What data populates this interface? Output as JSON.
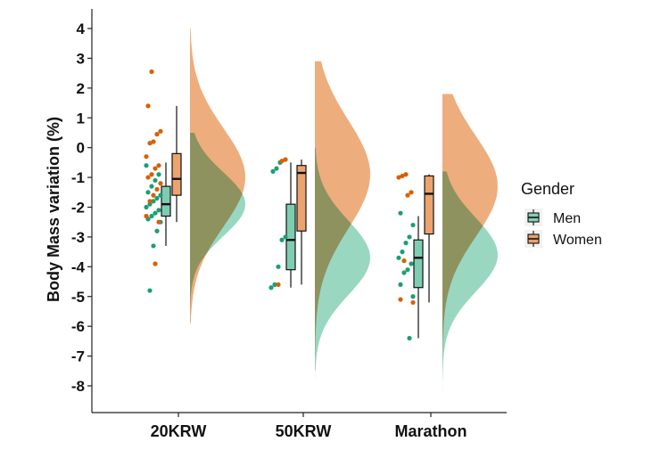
{
  "chart_data": {
    "type": "raincloud",
    "title": "",
    "xlabel": "",
    "ylabel": "Body Mass variation (%)",
    "ylim": [
      -8.9,
      4.4
    ],
    "yticks": [
      4,
      3,
      2,
      1,
      0,
      -1,
      -2,
      -3,
      -4,
      -5,
      -6,
      -7,
      -8
    ],
    "categories": [
      "20KRW",
      "50KRW",
      "Marathon"
    ],
    "legend": {
      "title": "Gender",
      "position": "right",
      "items": [
        {
          "name": "Men",
          "color": "#1b9e77",
          "fill": "#86cfb6"
        },
        {
          "name": "Women",
          "color": "#d95f02",
          "fill": "#e8a26e"
        }
      ]
    },
    "colors": {
      "men_point": "#1b9e77",
      "women_point": "#d95f02",
      "men_fill": "#7fcdb1",
      "women_fill": "#eba46f",
      "overlap_fill": "#a08a55"
    },
    "series": [
      {
        "name": "Men",
        "boxes": [
          {
            "category": "20KRW",
            "min": -3.3,
            "q1": -2.3,
            "median": -1.9,
            "q3": -1.3,
            "max": -0.5
          },
          {
            "category": "50KRW",
            "min": -4.7,
            "q1": -4.1,
            "median": -3.1,
            "q3": -1.9,
            "max": -0.5
          },
          {
            "category": "Marathon",
            "min": -6.4,
            "q1": -4.7,
            "median": -3.7,
            "q3": -3.1,
            "max": -2.3
          }
        ],
        "points": [
          {
            "category": "20KRW",
            "values": [
              -0.6,
              -0.9,
              -1.1,
              -1.3,
              -1.5,
              -1.6,
              -1.7,
              -1.8,
              -1.9,
              -2.0,
              -2.1,
              -2.2,
              -2.3,
              -2.4,
              -2.5,
              -2.8,
              -3.3,
              -4.8
            ]
          },
          {
            "category": "50KRW",
            "values": [
              -0.5,
              -0.7,
              -0.8,
              -3.0,
              -3.1,
              -4.0,
              -4.6,
              -4.7
            ]
          },
          {
            "category": "Marathon",
            "values": [
              -2.2,
              -2.6,
              -3.0,
              -3.2,
              -3.5,
              -3.7,
              -3.9,
              -4.1,
              -4.2,
              -4.6,
              -5.0,
              -6.4
            ]
          }
        ],
        "density": [
          {
            "category": "20KRW",
            "range": [
              -5.9,
              0.5
            ],
            "peak": -1.9
          },
          {
            "category": "50KRW",
            "range": [
              -7.5,
              0.0
            ],
            "peak": -3.7
          },
          {
            "category": "Marathon",
            "range": [
              -8.2,
              -0.8
            ],
            "peak": -3.6
          }
        ]
      },
      {
        "name": "Women",
        "boxes": [
          {
            "category": "20KRW",
            "min": -2.5,
            "q1": -1.6,
            "median": -1.05,
            "q3": -0.2,
            "max": 1.4
          },
          {
            "category": "50KRW",
            "min": -4.6,
            "q1": -2.8,
            "median": -0.85,
            "q3": -0.6,
            "max": -0.4
          },
          {
            "category": "Marathon",
            "min": -5.2,
            "q1": -2.9,
            "median": -1.55,
            "q3": -0.95,
            "max": -0.9
          }
        ],
        "points": [
          {
            "category": "20KRW",
            "values": [
              2.55,
              1.4,
              0.55,
              0.45,
              0.2,
              0.15,
              -0.3,
              -0.6,
              -0.7,
              -0.9,
              -1.0,
              -1.2,
              -1.4,
              -1.6,
              -1.8,
              -2.3,
              -2.5,
              -3.9
            ]
          },
          {
            "category": "50KRW",
            "values": [
              -0.4,
              -0.45,
              -4.6
            ]
          },
          {
            "category": "Marathon",
            "values": [
              -0.9,
              -0.95,
              -1.0,
              -1.5,
              -1.6,
              -3.8,
              -5.1,
              -5.2
            ]
          }
        ],
        "density": [
          {
            "category": "20KRW",
            "range": [
              -5.9,
              4.0
            ],
            "peak": -1.0
          },
          {
            "category": "50KRW",
            "range": [
              -8.0,
              2.9
            ],
            "peak": -0.9
          },
          {
            "category": "Marathon",
            "range": [
              -8.3,
              1.8
            ],
            "peak": -1.3
          }
        ]
      }
    ]
  }
}
